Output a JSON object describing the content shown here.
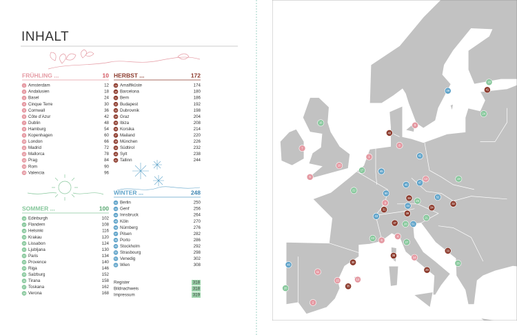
{
  "header": {
    "title": "INHALT"
  },
  "sections": [
    {
      "title": "FRÜHLING ...",
      "page": 10,
      "color": "#e59aa3",
      "accent": "#d2555f",
      "entries": [
        {
          "number": 1,
          "name": "Amsterdam",
          "page": 12
        },
        {
          "number": 2,
          "name": "Andalusien",
          "page": 18
        },
        {
          "number": 3,
          "name": "Basel",
          "page": 24
        },
        {
          "number": 4,
          "name": "Cinque Terre",
          "page": 30
        },
        {
          "number": 5,
          "name": "Cornwall",
          "page": 36
        },
        {
          "number": 6,
          "name": "Côte d’Azur",
          "page": 42
        },
        {
          "number": 7,
          "name": "Dublin",
          "page": 48
        },
        {
          "number": 8,
          "name": "Hamburg",
          "page": 54
        },
        {
          "number": 9,
          "name": "Kopenhagen",
          "page": 60
        },
        {
          "number": 10,
          "name": "London",
          "page": 66
        },
        {
          "number": 11,
          "name": "Madrid",
          "page": 72
        },
        {
          "number": 12,
          "name": "Mallorca",
          "page": 78
        },
        {
          "number": 13,
          "name": "Prag",
          "page": 84
        },
        {
          "number": 14,
          "name": "Rom",
          "page": 90
        },
        {
          "number": 15,
          "name": "Valencia",
          "page": 96
        }
      ]
    },
    {
      "title": "SOMMER ...",
      "page": 100,
      "color": "#86c79b",
      "accent": "#5aa872",
      "entries": [
        {
          "number": 16,
          "name": "Edinburgh",
          "page": 102
        },
        {
          "number": 17,
          "name": "Flandern",
          "page": 108
        },
        {
          "number": 18,
          "name": "Helsinki",
          "page": 116
        },
        {
          "number": 19,
          "name": "Krakau",
          "page": 120
        },
        {
          "number": 20,
          "name": "Lissabon",
          "page": 124
        },
        {
          "number": 21,
          "name": "Ljubljana",
          "page": 130
        },
        {
          "number": 22,
          "name": "Paris",
          "page": 134
        },
        {
          "number": 23,
          "name": "Provence",
          "page": 140
        },
        {
          "number": 24,
          "name": "Riga",
          "page": 146
        },
        {
          "number": 25,
          "name": "Salzburg",
          "page": 152
        },
        {
          "number": 26,
          "name": "Tirana",
          "page": 158
        },
        {
          "number": 27,
          "name": "Toskana",
          "page": 162
        },
        {
          "number": 28,
          "name": "Verona",
          "page": 168
        }
      ]
    },
    {
      "title": "HERBST ...",
      "page": 172,
      "color": "#8c3a2c",
      "accent": "#8c3a2c",
      "entries": [
        {
          "number": 29,
          "name": "Amalfiküste",
          "page": 174
        },
        {
          "number": 30,
          "name": "Barcelona",
          "page": 180
        },
        {
          "number": 31,
          "name": "Bern",
          "page": 186
        },
        {
          "number": 32,
          "name": "Budapest",
          "page": 192
        },
        {
          "number": 33,
          "name": "Dubrovnik",
          "page": 198
        },
        {
          "number": 34,
          "name": "Graz",
          "page": 204
        },
        {
          "number": 35,
          "name": "Ibiza",
          "page": 208
        },
        {
          "number": 36,
          "name": "Korsika",
          "page": 214
        },
        {
          "number": 37,
          "name": "Mailand",
          "page": 220
        },
        {
          "number": 38,
          "name": "München",
          "page": 226
        },
        {
          "number": 39,
          "name": "Südtirol",
          "page": 232
        },
        {
          "number": 40,
          "name": "Sylt",
          "page": 238
        },
        {
          "number": 41,
          "name": "Tallinn",
          "page": 244
        }
      ]
    },
    {
      "title": "WINTER ...",
      "page": 248,
      "color": "#5fa3c9",
      "accent": "#3f86b2",
      "entries": [
        {
          "number": 42,
          "name": "Berlin",
          "page": 250
        },
        {
          "number": 43,
          "name": "Genf",
          "page": 256
        },
        {
          "number": 44,
          "name": "Innsbruck",
          "page": 264
        },
        {
          "number": 45,
          "name": "Köln",
          "page": 270
        },
        {
          "number": 46,
          "name": "Nürnberg",
          "page": 276
        },
        {
          "number": 47,
          "name": "Pilsen",
          "page": 282
        },
        {
          "number": 48,
          "name": "Porto",
          "page": 286
        },
        {
          "number": 49,
          "name": "Stockholm",
          "page": 292
        },
        {
          "number": 50,
          "name": "Strasbourg",
          "page": 298
        },
        {
          "number": 51,
          "name": "Venedig",
          "page": 302
        },
        {
          "number": 52,
          "name": "Wien",
          "page": 308
        }
      ]
    }
  ],
  "appendix": [
    {
      "name": "Register",
      "page": 318
    },
    {
      "name": "Bildnachweis",
      "page": 318
    },
    {
      "name": "Impressum",
      "page": 319
    }
  ]
}
